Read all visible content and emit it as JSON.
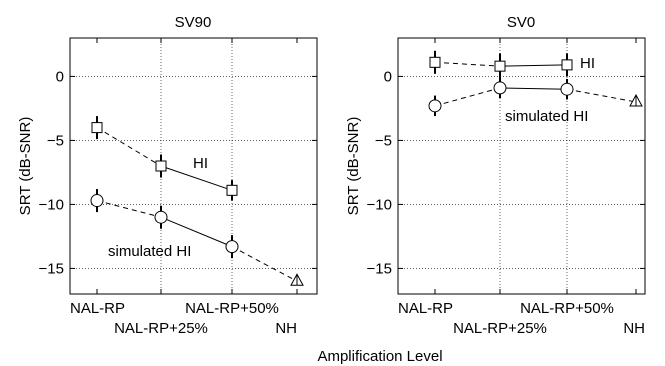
{
  "chart_data": [
    {
      "type": "line",
      "title": "SV90",
      "xlabel": "",
      "ylabel": "SRT (dB-SNR)",
      "ylim": [
        -17,
        3
      ],
      "yticks": [
        0,
        -5,
        -10,
        -15
      ],
      "categories": [
        "NAL-RP",
        "NAL-RP+25%",
        "NAL-RP+50%",
        "NH"
      ],
      "grid": true,
      "series": [
        {
          "name": "HI",
          "marker": "square",
          "values": [
            -4.0,
            -7.0,
            -8.9,
            null
          ],
          "errors": [
            0.9,
            0.9,
            0.8,
            null
          ]
        },
        {
          "name": "simulated HI",
          "marker": "circle",
          "values": [
            -9.7,
            -11.0,
            -13.3,
            null
          ],
          "errors": [
            0.9,
            0.9,
            0.9,
            null
          ]
        },
        {
          "name": "NH",
          "marker": "triangle",
          "values": [
            null,
            null,
            null,
            -16.0
          ],
          "errors": [
            null,
            null,
            null,
            0
          ]
        }
      ],
      "connections": [
        {
          "series": 0,
          "from": 0,
          "to": 1,
          "style": "dashed"
        },
        {
          "series": 0,
          "from": 1,
          "to": 2,
          "style": "solid"
        },
        {
          "series": 1,
          "from": 0,
          "to": 1,
          "style": "dashed"
        },
        {
          "series": 1,
          "from": 1,
          "to": 2,
          "style": "solid"
        },
        {
          "series": 1,
          "from": 2,
          "to": 3,
          "style": "dashed",
          "target_value": -16.0
        }
      ]
    },
    {
      "type": "line",
      "title": "SV0",
      "xlabel": "",
      "ylabel": "SRT (dB-SNR)",
      "ylim": [
        -17,
        3
      ],
      "yticks": [
        0,
        -5,
        -10,
        -15
      ],
      "categories": [
        "NAL-RP",
        "NAL-RP+25%",
        "NAL-RP+50%",
        "NH"
      ],
      "grid": true,
      "series": [
        {
          "name": "HI",
          "marker": "square",
          "values": [
            1.1,
            0.8,
            0.9,
            null
          ],
          "errors": [
            0.9,
            1.0,
            0.9,
            null
          ]
        },
        {
          "name": "simulated HI",
          "marker": "circle",
          "values": [
            -2.3,
            -0.9,
            -1.0,
            null
          ],
          "errors": [
            0.8,
            0.8,
            0.8,
            null
          ]
        },
        {
          "name": "NH",
          "marker": "triangle",
          "values": [
            null,
            null,
            null,
            -2.0
          ],
          "errors": [
            null,
            null,
            null,
            0
          ]
        }
      ],
      "connections": [
        {
          "series": 0,
          "from": 0,
          "to": 1,
          "style": "dashed"
        },
        {
          "series": 0,
          "from": 1,
          "to": 2,
          "style": "solid"
        },
        {
          "series": 1,
          "from": 0,
          "to": 1,
          "style": "dashed"
        },
        {
          "series": 1,
          "from": 1,
          "to": 2,
          "style": "solid"
        },
        {
          "series": 1,
          "from": 2,
          "to": 3,
          "style": "dashed",
          "target_value": -2.0
        }
      ]
    }
  ],
  "shared_xlabel": "Amplification Level"
}
